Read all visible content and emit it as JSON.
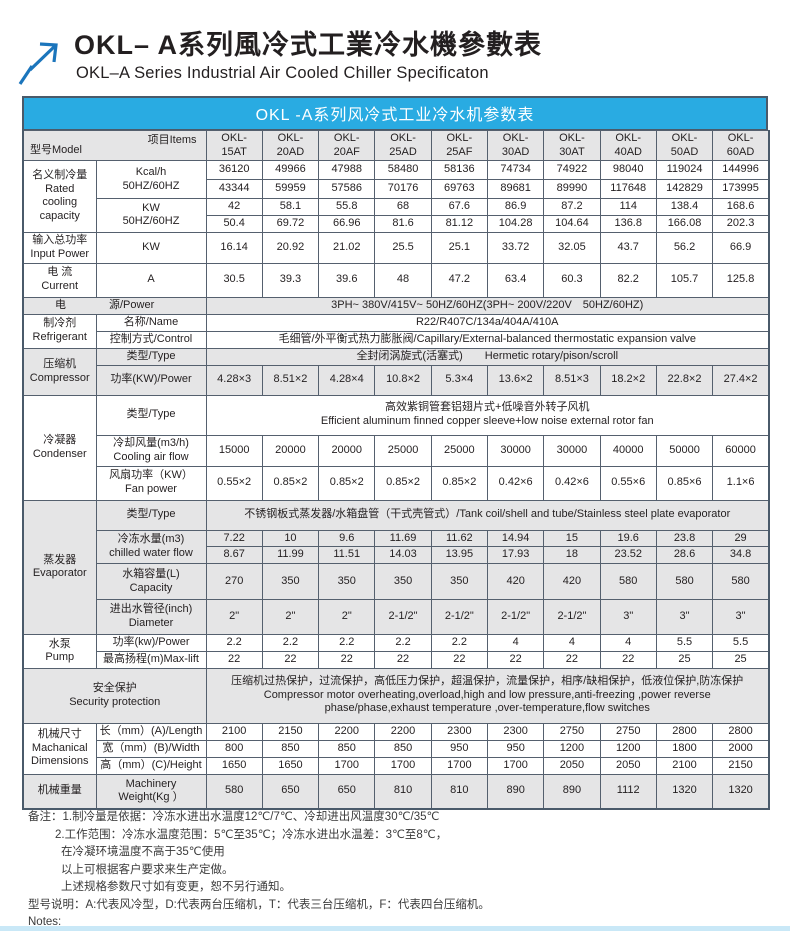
{
  "page": {
    "title_cn": "OKL– A系列風冷式工業冷水機參數表",
    "title_en": "OKL–A Series Industrial Air Cooled Chiller Specificaton"
  },
  "table": {
    "title": "OKL -A系列风冷式工业冷水机参数表",
    "corner": {
      "model": "型号Model",
      "items": "项目Items"
    },
    "models": [
      "OKL-15AT",
      "OKL-20AD",
      "OKL-20AF",
      "OKL-25AD",
      "OKL-25AF",
      "OKL-30AD",
      "OKL-30AT",
      "OKL-40AD",
      "OKL-50AD",
      "OKL-60AD"
    ],
    "header_row_height": 30,
    "rows": [
      {
        "h": 19,
        "shade": false,
        "cells": [
          {
            "type": "cat",
            "rowspan": 4,
            "lines": [
              "名义制冷量",
              "Rated",
              "cooling",
              "capacity"
            ]
          },
          {
            "type": "item",
            "rowspan": 2,
            "lines": [
              "Kcal/h",
              "50HZ/60HZ"
            ]
          },
          {
            "type": "vals",
            "values": [
              "36120",
              "49966",
              "47988",
              "58480",
              "58136",
              "74734",
              "74922",
              "98040",
              "119024",
              "144996"
            ]
          }
        ]
      },
      {
        "h": 19,
        "shade": false,
        "cells": [
          {
            "type": "vals",
            "values": [
              "43344",
              "59959",
              "57586",
              "70176",
              "69763",
              "89681",
              "89990",
              "117648",
              "142829",
              "173995"
            ]
          }
        ]
      },
      {
        "h": 15,
        "shade": false,
        "cells": [
          {
            "type": "item",
            "rowspan": 2,
            "lines": [
              "KW",
              "50HZ/60HZ"
            ]
          },
          {
            "type": "vals",
            "values": [
              "42",
              "58.1",
              "55.8",
              "68",
              "67.6",
              "86.9",
              "87.2",
              "114",
              "138.4",
              "168.6"
            ]
          }
        ]
      },
      {
        "h": 15,
        "shade": false,
        "cells": [
          {
            "type": "vals",
            "values": [
              "50.4",
              "69.72",
              "66.96",
              "81.6",
              "81.12",
              "104.28",
              "104.64",
              "136.8",
              "166.08",
              "202.3"
            ]
          }
        ]
      },
      {
        "h": 31,
        "shade": false,
        "cells": [
          {
            "type": "cat",
            "lines": [
              "输入总功率",
              "Input Power"
            ]
          },
          {
            "type": "item",
            "lines": [
              "KW"
            ]
          },
          {
            "type": "vals",
            "values": [
              "16.14",
              "20.92",
              "21.02",
              "25.5",
              "25.1",
              "33.72",
              "32.05",
              "43.7",
              "56.2",
              "66.9"
            ]
          }
        ]
      },
      {
        "h": 34,
        "shade": false,
        "cells": [
          {
            "type": "cat",
            "lines": [
              "电 流",
              "Current"
            ]
          },
          {
            "type": "item",
            "lines": [
              "A"
            ]
          },
          {
            "type": "vals",
            "values": [
              "30.5",
              "39.3",
              "39.6",
              "48",
              "47.2",
              "63.4",
              "60.3",
              "82.2",
              "105.7",
              "125.8"
            ]
          }
        ]
      },
      {
        "h": 17,
        "shade": true,
        "cells": [
          {
            "type": "dual",
            "colspan": 2,
            "a": "电",
            "b": "源/Power"
          },
          {
            "type": "span",
            "colspan": 10,
            "lines": [
              "3PH~ 380V/415V~ 50HZ/60HZ(3PH~ 200V/220V　50HZ/60HZ)"
            ]
          }
        ]
      },
      {
        "h": 17,
        "shade": false,
        "cells": [
          {
            "type": "cat",
            "rowspan": 2,
            "lines": [
              "制冷剂",
              "Refrigerant"
            ]
          },
          {
            "type": "item",
            "lines": [
              "名称/Name"
            ]
          },
          {
            "type": "span",
            "colspan": 10,
            "lines": [
              "R22/R407C/134a/404A/410A"
            ]
          }
        ]
      },
      {
        "h": 17,
        "shade": false,
        "cells": [
          {
            "type": "item",
            "lines": [
              "控制方式/Control"
            ]
          },
          {
            "type": "span",
            "colspan": 10,
            "lines": [
              "毛细管/外平衡式热力膨胀阀/Capillary/External-balanced thermostatic expansion valve"
            ]
          }
        ]
      },
      {
        "h": 17,
        "shade": true,
        "cells": [
          {
            "type": "cat",
            "rowspan": 2,
            "lines": [
              "压缩机",
              "Compressor"
            ]
          },
          {
            "type": "item",
            "lines": [
              "类型/Type"
            ]
          },
          {
            "type": "span",
            "colspan": 10,
            "lines": [
              "全封闭涡旋式(活塞式)　　Hermetic rotary/pison/scroll"
            ]
          }
        ]
      },
      {
        "h": 30,
        "shade": true,
        "cells": [
          {
            "type": "item",
            "lines": [
              "功率(KW)/Power"
            ]
          },
          {
            "type": "vals",
            "values": [
              "4.28×3",
              "8.51×2",
              "4.28×4",
              "10.8×2",
              "5.3×4",
              "13.6×2",
              "8.51×3",
              "18.2×2",
              "22.8×2",
              "27.4×2"
            ]
          }
        ]
      },
      {
        "h": 40,
        "shade": false,
        "cells": [
          {
            "type": "cat",
            "rowspan": 3,
            "lines": [
              "冷凝器",
              "Condenser"
            ]
          },
          {
            "type": "item",
            "lines": [
              "类型/Type"
            ]
          },
          {
            "type": "span",
            "colspan": 10,
            "lines": [
              "高效紫铜管套铝翅片式+低噪音外转子风机",
              "Efficient aluminum finned copper sleeve+low noise external rotor fan"
            ]
          }
        ]
      },
      {
        "h": 31,
        "shade": false,
        "cells": [
          {
            "type": "item",
            "lines": [
              "冷却风量(m3/h)",
              "Cooling air flow"
            ]
          },
          {
            "type": "vals",
            "values": [
              "15000",
              "20000",
              "20000",
              "25000",
              "25000",
              "30000",
              "30000",
              "40000",
              "50000",
              "60000"
            ]
          }
        ]
      },
      {
        "h": 34,
        "shade": false,
        "cells": [
          {
            "type": "item",
            "lines": [
              "风扇功率（KW）",
              "Fan power"
            ]
          },
          {
            "type": "vals",
            "values": [
              "0.55×2",
              "0.85×2",
              "0.85×2",
              "0.85×2",
              "0.85×2",
              "0.42×6",
              "0.42×6",
              "0.55×6",
              "0.85×6",
              "1.1×6"
            ]
          }
        ]
      },
      {
        "h": 30,
        "shade": true,
        "cells": [
          {
            "type": "cat",
            "rowspan": 5,
            "lines": [
              "蒸发器",
              "Evaporator"
            ]
          },
          {
            "type": "item",
            "lines": [
              "类型/Type"
            ]
          },
          {
            "type": "span",
            "colspan": 10,
            "lines": [
              "不锈钢板式蒸发器/水箱盘管（干式壳管式）/Tank coil/shell and tube/Stainless steel plate evaporator"
            ]
          }
        ]
      },
      {
        "h": 16,
        "shade": true,
        "cells": [
          {
            "type": "item",
            "rowspan": 2,
            "lines": [
              "冷冻水量(m3)",
              "chilled water flow"
            ]
          },
          {
            "type": "vals",
            "values": [
              "7.22",
              "10",
              "9.6",
              "11.69",
              "11.62",
              "14.94",
              "15",
              "19.6",
              "23.8",
              "29"
            ]
          }
        ]
      },
      {
        "h": 16,
        "shade": true,
        "cells": [
          {
            "type": "vals",
            "values": [
              "8.67",
              "11.99",
              "11.51",
              "14.03",
              "13.95",
              "17.93",
              "18",
              "23.52",
              "28.6",
              "34.8"
            ]
          }
        ]
      },
      {
        "h": 36,
        "shade": true,
        "cells": [
          {
            "type": "item",
            "lines": [
              "水箱容量(L)",
              "Capacity"
            ]
          },
          {
            "type": "vals",
            "values": [
              "270",
              "350",
              "350",
              "350",
              "350",
              "420",
              "420",
              "580",
              "580",
              "580"
            ]
          }
        ]
      },
      {
        "h": 35,
        "shade": true,
        "cells": [
          {
            "type": "item",
            "lines": [
              "进出水管径(inch)",
              "Diameter"
            ]
          },
          {
            "type": "vals",
            "values": [
              "2\"",
              "2\"",
              "2\"",
              "2-1/2\"",
              "2-1/2\"",
              "2-1/2\"",
              "2-1/2\"",
              "3\"",
              "3\"",
              "3\""
            ]
          }
        ]
      },
      {
        "h": 16,
        "shade": false,
        "cells": [
          {
            "type": "cat",
            "rowspan": 2,
            "lines": [
              "水泵",
              "Pump"
            ]
          },
          {
            "type": "item",
            "lines": [
              "功率(kw)/Power"
            ]
          },
          {
            "type": "vals",
            "values": [
              "2.2",
              "2.2",
              "2.2",
              "2.2",
              "2.2",
              "4",
              "4",
              "4",
              "5.5",
              "5.5"
            ]
          }
        ]
      },
      {
        "h": 16,
        "shade": false,
        "cells": [
          {
            "type": "item",
            "lines": [
              "最高扬程(m)Max-lift"
            ]
          },
          {
            "type": "vals",
            "values": [
              "22",
              "22",
              "22",
              "22",
              "22",
              "22",
              "22",
              "22",
              "25",
              "25"
            ]
          }
        ]
      },
      {
        "h": 55,
        "shade": true,
        "cells": [
          {
            "type": "label2",
            "colspan": 2,
            "lines": [
              "安全保护",
              "Security protection"
            ]
          },
          {
            "type": "span",
            "colspan": 10,
            "lines": [
              "压缩机过热保护，过流保护，高低压力保护，超温保护，流量保护，相序/缺相保护，低液位保护,防冻保护",
              "Compressor motor overheating,overload,high and low pressure,anti-freezing ,power reverse phase/phase,exhaust temperature ,over-temperature,flow switches"
            ]
          }
        ]
      },
      {
        "h": 17,
        "shade": false,
        "cells": [
          {
            "type": "cat",
            "rowspan": 3,
            "lines": [
              "机械尺寸",
              "Machanical",
              "Dimensions"
            ]
          },
          {
            "type": "item",
            "lines": [
              "长（mm）(A)/Length"
            ]
          },
          {
            "type": "vals",
            "values": [
              "2100",
              "2150",
              "2200",
              "2200",
              "2300",
              "2300",
              "2750",
              "2750",
              "2800",
              "2800"
            ]
          }
        ]
      },
      {
        "h": 17,
        "shade": false,
        "cells": [
          {
            "type": "item",
            "lines": [
              "宽（mm）(B)/Width"
            ]
          },
          {
            "type": "vals",
            "values": [
              "800",
              "850",
              "850",
              "850",
              "950",
              "950",
              "1200",
              "1200",
              "1800",
              "2000"
            ]
          }
        ]
      },
      {
        "h": 17,
        "shade": false,
        "cells": [
          {
            "type": "item",
            "lines": [
              "高（mm）(C)/Height"
            ]
          },
          {
            "type": "vals",
            "values": [
              "1650",
              "1650",
              "1700",
              "1700",
              "1700",
              "1700",
              "2050",
              "2050",
              "2100",
              "2150"
            ]
          }
        ]
      },
      {
        "h": 35,
        "shade": true,
        "cells": [
          {
            "type": "cat",
            "lines": [
              "机械重量"
            ]
          },
          {
            "type": "item",
            "lines": [
              "Machinery",
              "Weight(Kg ）"
            ]
          },
          {
            "type": "vals",
            "values": [
              "580",
              "650",
              "650",
              "810",
              "810",
              "890",
              "890",
              "1112",
              "1320",
              "1320"
            ]
          }
        ]
      }
    ]
  },
  "notes": {
    "lines": [
      {
        "text": "备注：1.制冷量是依据：冷冻水进出水温度12℃/7℃、冷却进出风温度30℃/35℃",
        "indent": 0
      },
      {
        "text": "2.工作范围：冷冻水温度范围：5℃至35℃；冷冻水进出水温差：3℃至8℃，",
        "indent": 1
      },
      {
        "text": "在冷凝环境温度不高于35℃使用",
        "indent": 2
      },
      {
        "text": "以上可根据客户要求来生产定做。",
        "indent": 2
      },
      {
        "text": "上述规格参数尺寸如有变更，恕不另行通知。",
        "indent": 2
      },
      {
        "text": "型号说明：A:代表风冷型，D:代表两台压缩机，T：代表三台压缩机，F：代表四台压缩机。",
        "indent": 0
      },
      {
        "text": "Notes:",
        "indent": 0
      }
    ]
  },
  "colors": {
    "accent_blue": "#29abe2",
    "arrow_blue": "#1b75bc",
    "border": "#55606e",
    "shade_gray": "#e5e5e6",
    "bottom_strip": "#c9e8f7"
  }
}
